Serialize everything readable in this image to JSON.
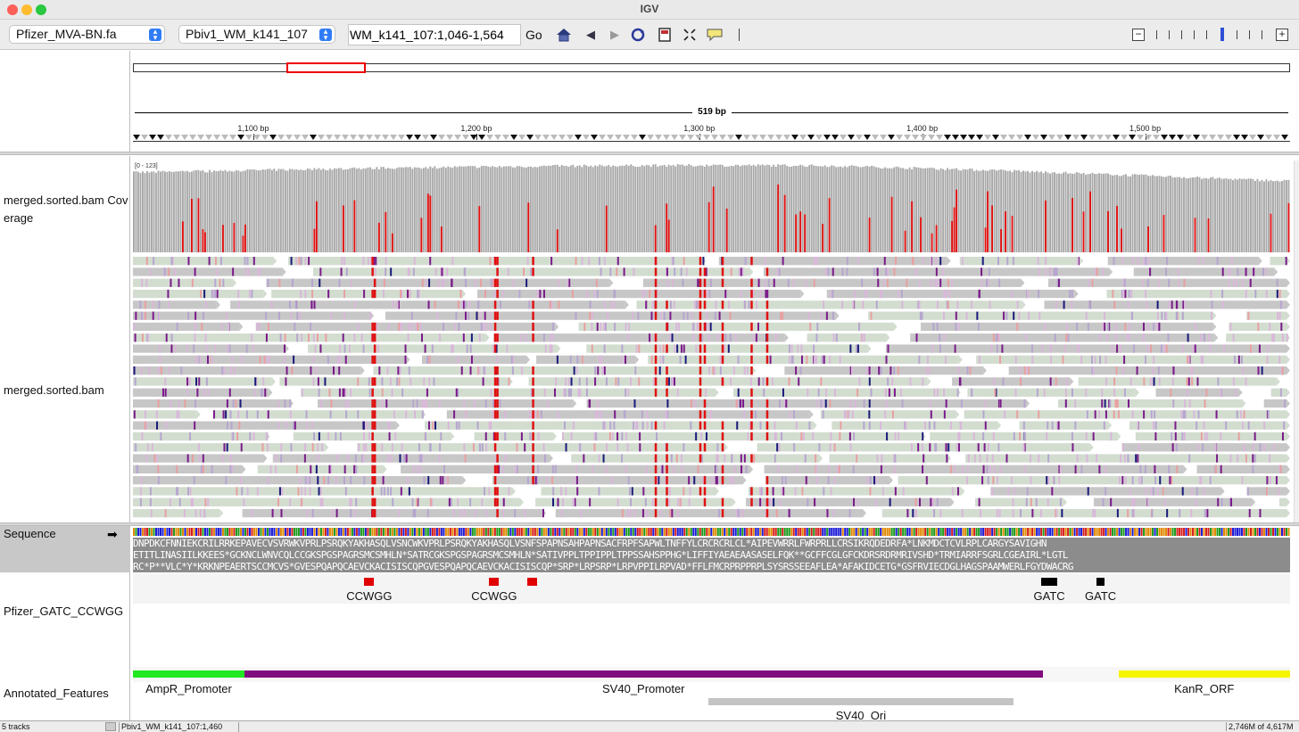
{
  "window": {
    "title": "IGV"
  },
  "toolbar": {
    "genome": "Pfizer_MVA-BN.fa",
    "chromosome": "Pbiv1_WM_k141_107",
    "locus": "WM_k141_107:1,046-1,564",
    "go_label": "Go"
  },
  "ruler": {
    "span_label": "519 bp",
    "ticks": [
      {
        "label": "1,100 bp",
        "bp": 1100
      },
      {
        "label": "1,200 bp",
        "bp": 1200
      },
      {
        "label": "1,300 bp",
        "bp": 1300
      },
      {
        "label": "1,400 bp",
        "bp": 1400
      },
      {
        "label": "1,500 bp",
        "bp": 1500
      }
    ],
    "view_start_bp": 1046,
    "view_end_bp": 1564
  },
  "tracks": {
    "coverage_name": "merged.sorted.bam Coverage",
    "coverage_range": "[0 - 123]",
    "alignment_name": "merged.sorted.bam",
    "sequence_name": "Sequence",
    "sites_name": "Pfizer_GATC_CCWGG",
    "annotation_name": "Annotated_Features"
  },
  "sequence": {
    "frame1": "DNPDKCFNNIEKCRILRRKEPAVECVSVRWKVPRLPSRQKYAKHASQLVSNCWKVPRLPSRQKYAKHASQLVSNFSPAPNSAHPAPNSACFRPFSAPWLTNFFYLCRCRCRLCL*AIPEVWRRLFWRPRLLCRSIKRQDEDRFA*LNKMDCTCVLRPLCARGYSAVIGHN",
    "frame2": "ETITLINASIILKKEES*GCKNCLWNVCQLCCGKSPGSPAGRSMCSMHLN*SATRCGKSPGSPAGRSMCSMHLN*SATIVPPLTPPIPPLTPPSSAHSPPHG*LIFFIYAEAEAASASELFQK**GCFFCGLGFCKDRSRDRMRIVSHD*TRMIARRFSGRLCGEAIRL*LGTL",
    "frame3": "RC*P**VLC*Y*KRKNPEAERTSCCMCVS*GVESPQAPQCAEVCKACISISCQPGVESPQAPQCAEVCKACISISCQP*SRP*LRPSRP*LRPVPPILRPVAD*FFLFMCRPRPPRPLSYSRSSEEAFLEA*AFAKIDCETG*GSFRVIECDGLHAGSPAAMWERLFGYDWACRG"
  },
  "sites": [
    {
      "label": "CCWGG",
      "bp": 1152
    },
    {
      "label": "CCWGG",
      "bp": 1208
    },
    {
      "label": "",
      "bp": 1225
    },
    {
      "label": "GATC",
      "bp": 1457
    },
    {
      "label": "GATC",
      "bp": 1480
    }
  ],
  "annotations": [
    {
      "label": "AmpR_Promoter",
      "start_bp": 1046,
      "end_bp": 1095,
      "color": "#22e822"
    },
    {
      "label": "SV40_Promoter",
      "start_bp": 1096,
      "end_bp": 1453,
      "color": "#800c80"
    },
    {
      "label": "KanR_ORF",
      "start_bp": 1488,
      "end_bp": 1564,
      "color": "#f5f500"
    },
    {
      "label": "SV40_Ori",
      "start_bp": 1304,
      "end_bp": 1440,
      "color": "#c4c4c4"
    }
  ],
  "colors": {
    "coverage_bar": "#a8a8a8",
    "mismatch_red": "#e01010",
    "read_gray": "#c7c7c7",
    "read_green": "#d2ddd0",
    "modified_purple": "#7a1a8a",
    "modified_navy": "#1a1a7a",
    "site_red": "#e00000",
    "site_black": "#000000"
  },
  "status": {
    "tracks": "5 tracks",
    "position": "Pbiv1_WM_k141_107:1,460",
    "memory": "2,746M of 4,617M"
  }
}
